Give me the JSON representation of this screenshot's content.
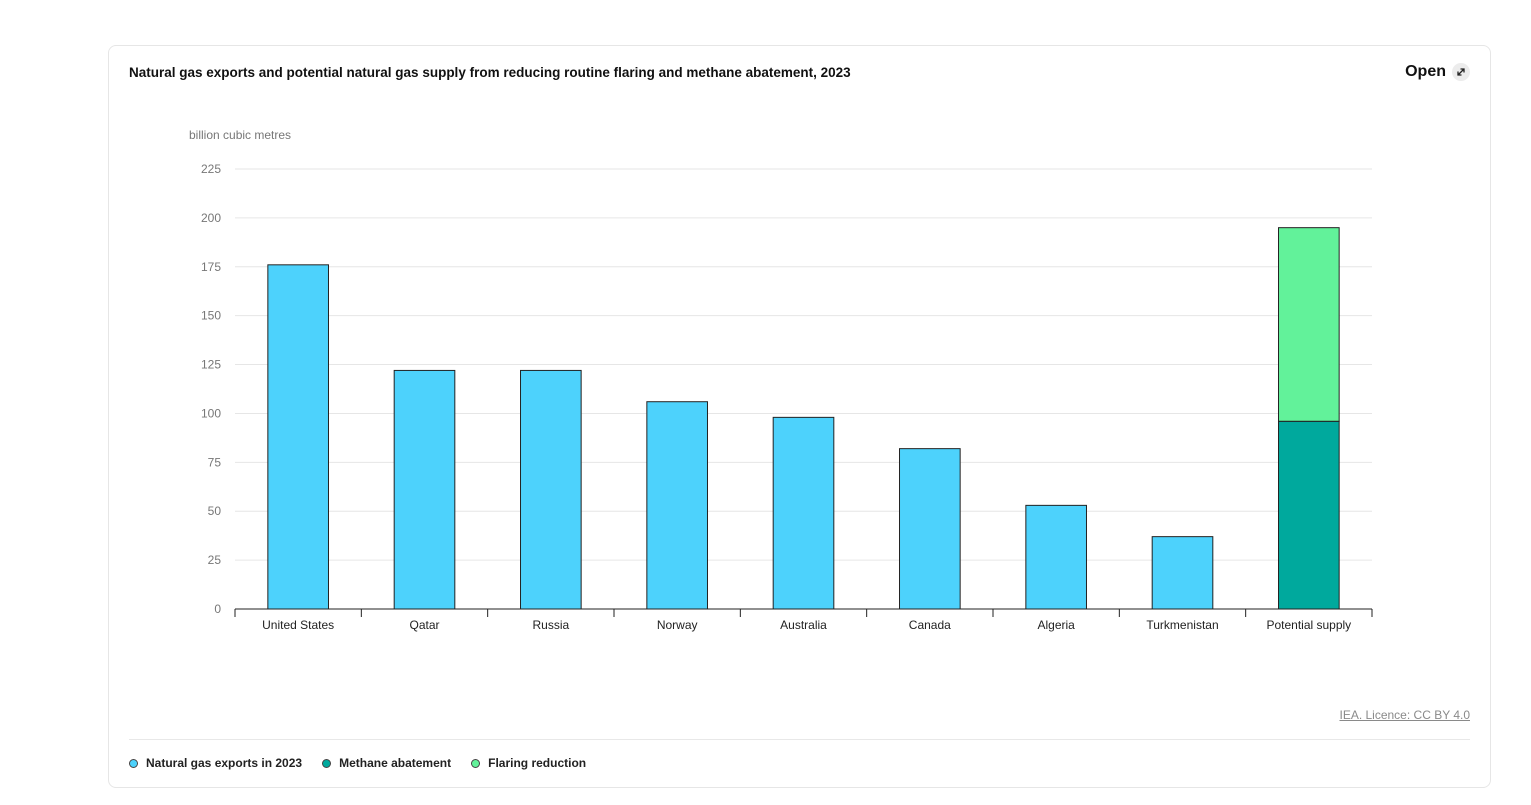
{
  "card": {
    "title": "Natural gas exports and potential natural gas supply from reducing routine flaring and methane abatement, 2023",
    "open_label": "Open",
    "open_icon": "expand-arrow-icon",
    "credit": "IEA. Licence: CC BY 4.0"
  },
  "colors": {
    "exports": "#4dd2fc",
    "methane": "#00a99d",
    "flaring": "#62f29a"
  },
  "chart_data": {
    "type": "bar",
    "stacked": true,
    "ylabel": "billion cubic metres",
    "ylim": [
      0,
      225
    ],
    "yticks": [
      0,
      25,
      50,
      75,
      100,
      125,
      150,
      175,
      200,
      225
    ],
    "grid": true,
    "legend_position": "bottom-left",
    "categories": [
      "United States",
      "Qatar",
      "Russia",
      "Norway",
      "Australia",
      "Canada",
      "Algeria",
      "Turkmenistan",
      "Potential supply"
    ],
    "series": [
      {
        "name": "Natural gas exports in 2023",
        "color": "#4dd2fc",
        "values": [
          176,
          122,
          122,
          106,
          98,
          82,
          53,
          37,
          0
        ]
      },
      {
        "name": "Methane abatement",
        "color": "#00a99d",
        "values": [
          0,
          0,
          0,
          0,
          0,
          0,
          0,
          0,
          96
        ]
      },
      {
        "name": "Flaring reduction",
        "color": "#62f29a",
        "values": [
          0,
          0,
          0,
          0,
          0,
          0,
          0,
          0,
          99
        ]
      }
    ]
  }
}
